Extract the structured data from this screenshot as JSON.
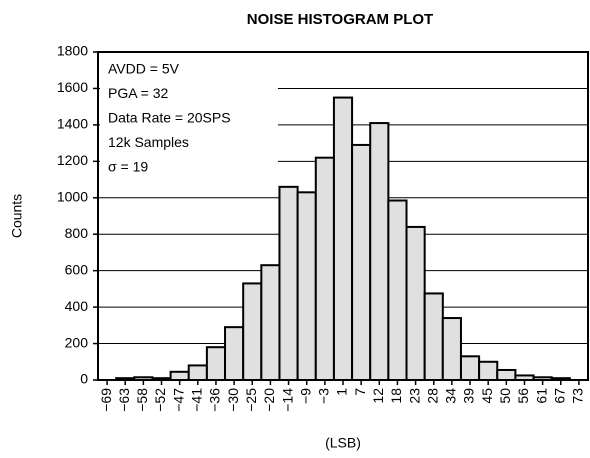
{
  "chart_data": {
    "type": "bar",
    "title": "NOISE HISTOGRAM PLOT",
    "x_label": "(LSB)",
    "y_label": "Counts",
    "annotations": [
      "AVDD = 5V",
      "PGA = 32",
      "Data Rate = 20SPS",
      "12k Samples",
      "σ = 19"
    ],
    "categories": [
      "−69",
      "−63",
      "−58",
      "−52",
      "−47",
      "−41",
      "−36",
      "−30",
      "−25",
      "−20",
      "−14",
      "−9",
      "−3",
      "1",
      "7",
      "12",
      "18",
      "23",
      "28",
      "34",
      "39",
      "45",
      "50",
      "56",
      "61",
      "67",
      "73"
    ],
    "values": [
      0,
      10,
      15,
      10,
      45,
      80,
      180,
      290,
      530,
      630,
      1060,
      1030,
      1220,
      1550,
      1290,
      1410,
      985,
      840,
      475,
      340,
      130,
      100,
      55,
      25,
      15,
      10,
      0
    ],
    "color": "#e0e0e0",
    "ylim": [
      0,
      1800
    ],
    "yticks": [
      0,
      200,
      400,
      600,
      800,
      1000,
      1200,
      1400,
      1600,
      1800
    ],
    "grid": true
  }
}
